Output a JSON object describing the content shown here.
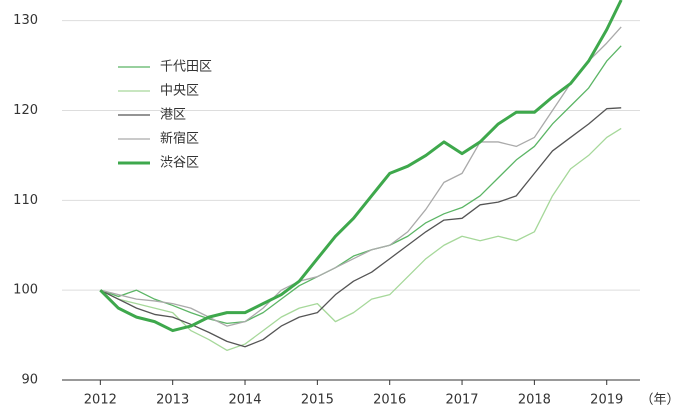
{
  "chart_data": {
    "type": "line",
    "x_unit": "（年）",
    "x": [
      2012,
      2012.25,
      2012.5,
      2012.75,
      2013,
      2013.25,
      2013.5,
      2013.75,
      2014,
      2014.25,
      2014.5,
      2014.75,
      2015,
      2015.25,
      2015.5,
      2015.75,
      2016,
      2016.25,
      2016.5,
      2016.75,
      2017,
      2017.25,
      2017.5,
      2017.75,
      2018,
      2018.25,
      2018.5,
      2018.75,
      2019,
      2019.2
    ],
    "series": [
      {
        "name": "千代田区",
        "color": "#5bb565",
        "width": 1.3,
        "values": [
          100,
          99.3,
          100,
          99,
          98.3,
          97.5,
          96.8,
          96.3,
          96.5,
          97.5,
          99,
          100.5,
          101.5,
          102.5,
          103.8,
          104.5,
          105,
          106,
          107.5,
          108.5,
          109.2,
          110.5,
          112.5,
          114.5,
          116,
          118.5,
          120.5,
          122.5,
          125.5,
          127.2
        ]
      },
      {
        "name": "中央区",
        "color": "#a6d89a",
        "width": 1.3,
        "values": [
          100,
          99,
          98.5,
          98,
          97.5,
          95.5,
          94.5,
          93.3,
          94,
          95.5,
          97,
          98,
          98.5,
          96.5,
          97.5,
          99,
          99.5,
          101.5,
          103.5,
          105,
          106,
          105.5,
          106,
          105.5,
          106.5,
          110.5,
          113.5,
          115,
          117,
          118
        ]
      },
      {
        "name": "港区",
        "color": "#555555",
        "width": 1.3,
        "values": [
          100,
          99,
          98,
          97.3,
          97,
          96.2,
          95.3,
          94.3,
          93.7,
          94.5,
          96,
          97,
          97.5,
          99.5,
          101,
          102,
          103.5,
          105,
          106.5,
          107.8,
          108,
          109.5,
          109.8,
          110.5,
          113,
          115.5,
          117,
          118.5,
          120.2,
          120.3
        ]
      },
      {
        "name": "新宿区",
        "color": "#aaaaaa",
        "width": 1.3,
        "values": [
          100,
          99.5,
          99,
          98.8,
          98.5,
          98,
          97,
          96,
          96.5,
          98,
          100,
          101,
          101.5,
          102.5,
          103.5,
          104.5,
          105,
          106.5,
          109,
          112,
          113,
          116.5,
          116.5,
          116,
          117,
          120,
          123,
          125.5,
          127.5,
          129.3
        ]
      },
      {
        "name": "渋谷区",
        "color": "#3ea84c",
        "width": 3,
        "values": [
          100,
          98,
          97,
          96.5,
          95.5,
          96,
          97,
          97.5,
          97.5,
          98.5,
          99.5,
          101,
          103.5,
          106,
          108,
          110.5,
          113,
          113.8,
          115,
          116.5,
          115.2,
          116.5,
          118.5,
          119.8,
          119.8,
          121.5,
          123,
          125.5,
          129,
          132.3
        ]
      }
    ],
    "xlim": [
      2011.47,
      2019.46
    ],
    "xticks": [
      2012,
      2013,
      2014,
      2015,
      2016,
      2017,
      2018,
      2019
    ],
    "ylim": [
      90,
      132.3
    ],
    "yticks": [
      90,
      100,
      110,
      120,
      130
    ],
    "grid": true
  }
}
